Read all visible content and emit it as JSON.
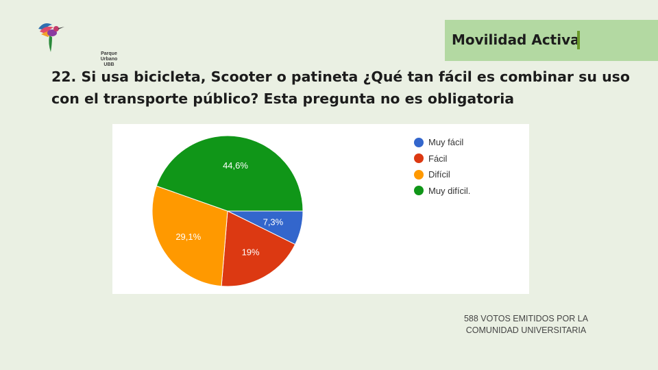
{
  "logo": {
    "icon": "hummingbird-icon",
    "lines": [
      "Parque",
      "Urbano",
      "UBB"
    ]
  },
  "header": {
    "tag": "Movilidad Activa",
    "question": "22. Si usa bicicleta, Scooter o patineta ¿Qué tan fácil es combinar su uso con el transporte público?  Esta pregunta no es obligatoria"
  },
  "chart_data": {
    "type": "pie",
    "slices": [
      {
        "label": "Muy fácil",
        "value": 7.3,
        "display": "7,3%",
        "color": "#3366cc"
      },
      {
        "label": "Fácil",
        "value": 19.0,
        "display": "19%",
        "color": "#dc3912"
      },
      {
        "label": "Difícil",
        "value": 29.1,
        "display": "29,1%",
        "color": "#ff9900"
      },
      {
        "label": "Muy difícil.",
        "value": 44.6,
        "display": "44,6%",
        "color": "#109618"
      }
    ],
    "legend_position": "right"
  },
  "footer": {
    "lines": [
      "588  VOTOS EMITIDOS POR LA",
      "COMUNIDAD UNIVERSITARIA"
    ]
  }
}
